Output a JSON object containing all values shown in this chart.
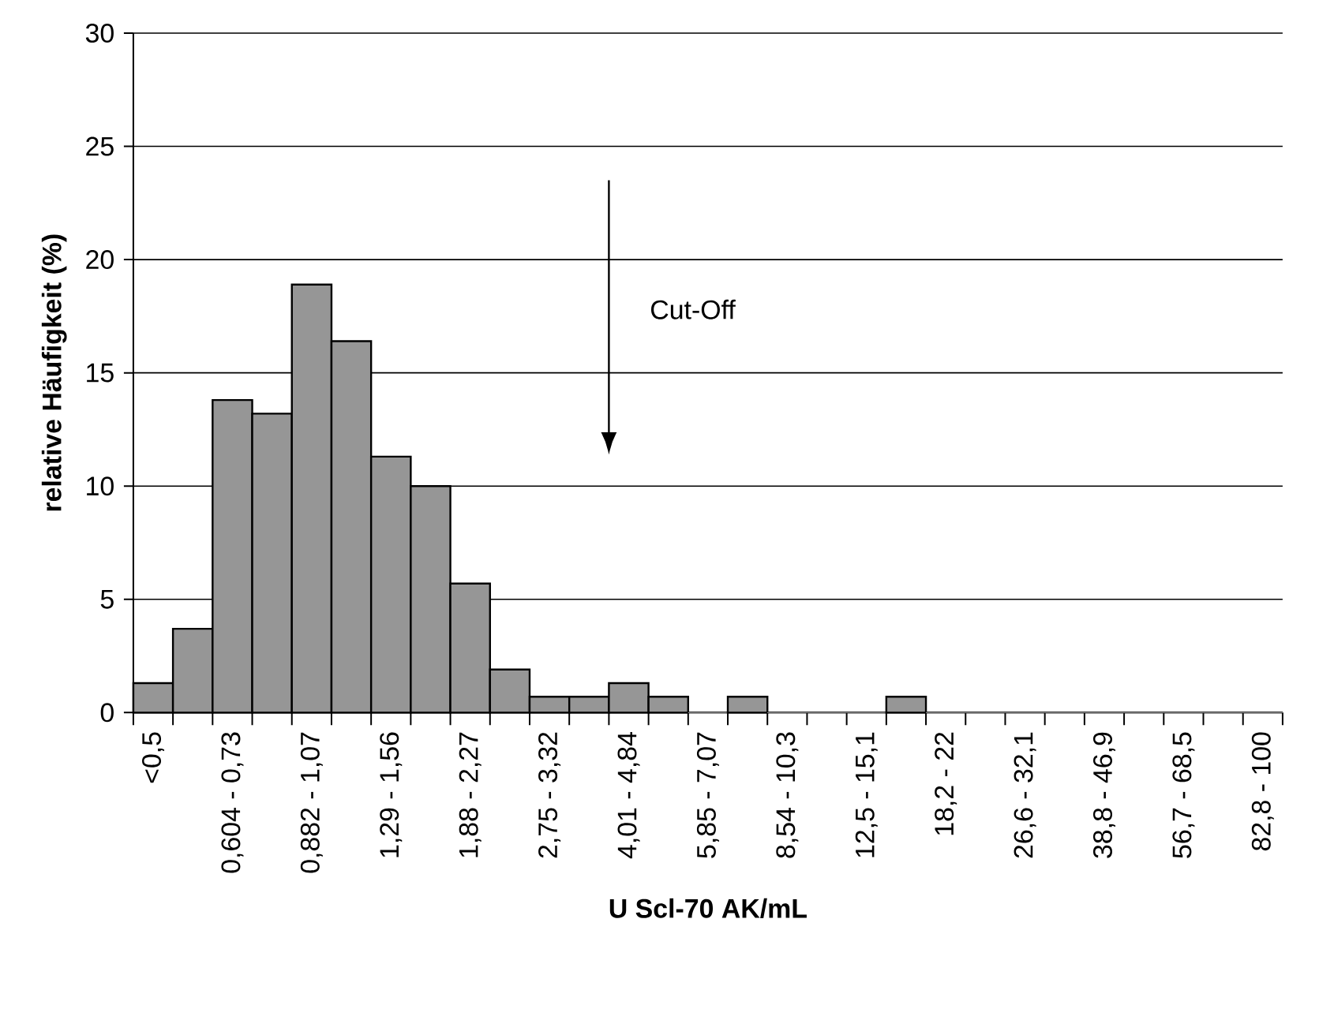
{
  "chart_data": {
    "type": "bar",
    "xlabel": "U Scl-70 AK/mL",
    "ylabel": "relative Häufigkeit (%)",
    "categories": [
      "<0,5",
      null,
      "0,604 - 0,73",
      null,
      "0,882 - 1,07",
      null,
      "1,29 - 1,56",
      null,
      "1,88 - 2,27",
      null,
      "2,75 - 3,32",
      null,
      "4,01 - 4,84",
      null,
      "5,85 - 7,07",
      null,
      "8,54 - 10,3",
      null,
      "12,5 - 15,1",
      null,
      "18,2 - 22",
      null,
      "26,6 - 32,1",
      null,
      "38,8 - 46,9",
      null,
      "56,7 - 68,5",
      null,
      "82,8 - 100"
    ],
    "values": [
      1.3,
      3.7,
      13.8,
      13.2,
      18.9,
      16.4,
      11.3,
      10.0,
      5.7,
      1.9,
      0.7,
      0.7,
      1.3,
      0.7,
      0,
      0.7,
      0,
      0,
      0,
      0.7,
      0,
      0,
      0,
      0,
      0,
      0,
      0,
      0,
      0
    ],
    "color": "#969696",
    "ylim": [
      0,
      30
    ],
    "yticks": [
      0,
      5,
      10,
      15,
      20,
      25,
      30
    ],
    "grid": "y",
    "annotations": [
      "Cut-Off"
    ]
  }
}
